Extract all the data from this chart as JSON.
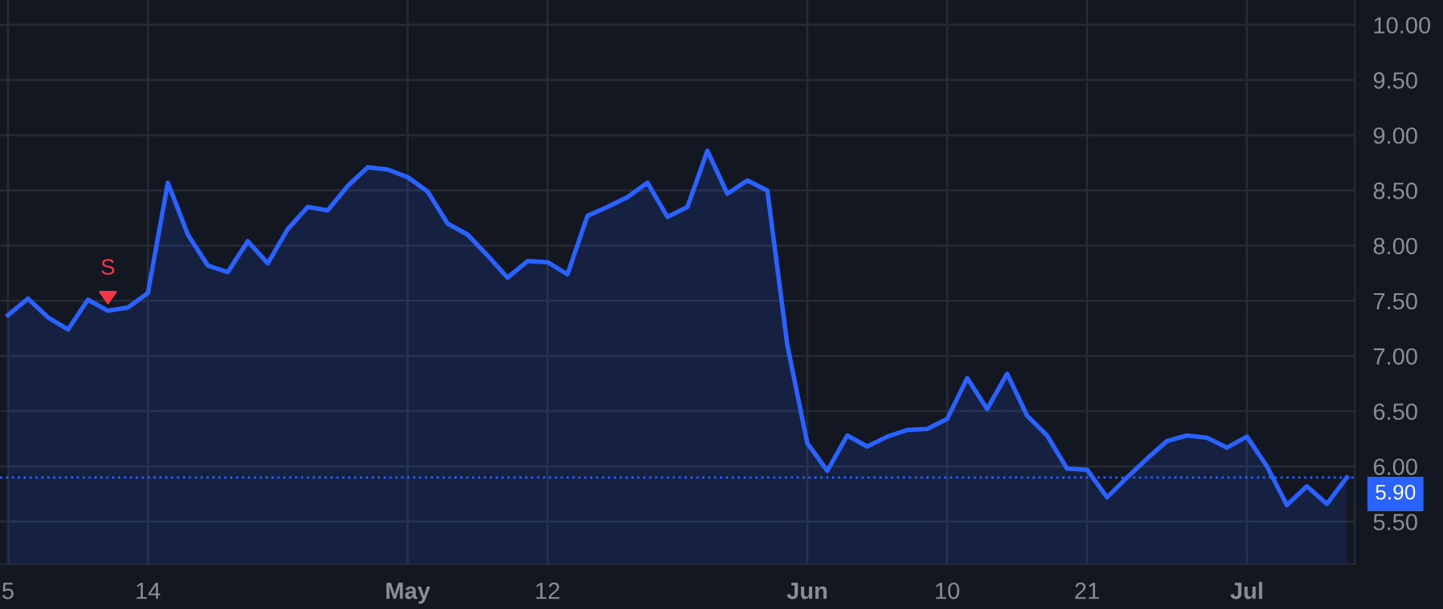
{
  "chart_data": {
    "type": "area",
    "categories": [
      "5",
      null,
      null,
      null,
      null,
      null,
      null,
      "14",
      null,
      null,
      null,
      null,
      null,
      null,
      null,
      null,
      null,
      null,
      null,
      null,
      "May",
      null,
      null,
      null,
      null,
      null,
      null,
      "12",
      null,
      null,
      null,
      null,
      null,
      null,
      null,
      null,
      null,
      null,
      null,
      null,
      "Jun",
      null,
      null,
      null,
      null,
      null,
      null,
      "10",
      null,
      null,
      null,
      null,
      null,
      null,
      "21",
      null,
      null,
      null,
      null,
      null,
      null,
      null,
      "Jul",
      null,
      null,
      null,
      null,
      null
    ],
    "series": [
      {
        "color": "#2962ff",
        "values": [
          7.37,
          7.52,
          7.35,
          7.24,
          7.51,
          7.41,
          7.44,
          7.57,
          8.57,
          8.1,
          7.82,
          7.76,
          8.04,
          7.84,
          8.15,
          8.35,
          8.32,
          8.54,
          8.71,
          8.69,
          8.62,
          8.49,
          8.2,
          8.1,
          7.91,
          7.71,
          7.86,
          7.85,
          7.74,
          8.27,
          8.35,
          8.44,
          8.57,
          8.26,
          8.35,
          8.86,
          8.47,
          8.59,
          8.5,
          7.1,
          6.21,
          5.96,
          6.28,
          6.18,
          6.27,
          6.33,
          6.34,
          6.43,
          6.8,
          6.52,
          6.84,
          6.46,
          6.28,
          5.98,
          5.97,
          5.72,
          5.9,
          6.07,
          6.23,
          6.28,
          6.26,
          6.17,
          6.27,
          6.0,
          5.65,
          5.82,
          5.66,
          5.9
        ]
      }
    ],
    "ylim": [
      5.115,
      10.225
    ],
    "yticks": [
      {
        "value": 5.5,
        "label": "5.50"
      },
      {
        "value": 6,
        "label": "6.00"
      },
      {
        "value": 6.5,
        "label": "6.50"
      },
      {
        "value": 7,
        "label": "7.00"
      },
      {
        "value": 7.5,
        "label": "7.50"
      },
      {
        "value": 8,
        "label": "8.00"
      },
      {
        "value": 8.5,
        "label": "8.50"
      },
      {
        "value": 9,
        "label": "9.00"
      },
      {
        "value": 9.5,
        "label": "9.50"
      },
      {
        "value": 10,
        "label": "10.00"
      }
    ],
    "ref_lines": [
      {
        "axis": "y",
        "value": 5.9,
        "label": "5.90",
        "color": "#2962ff",
        "line_style": "dotted"
      }
    ],
    "annotations": [
      "S"
    ],
    "grid": true,
    "line_style": "solid",
    "marker": "none",
    "legend": false
  }
}
